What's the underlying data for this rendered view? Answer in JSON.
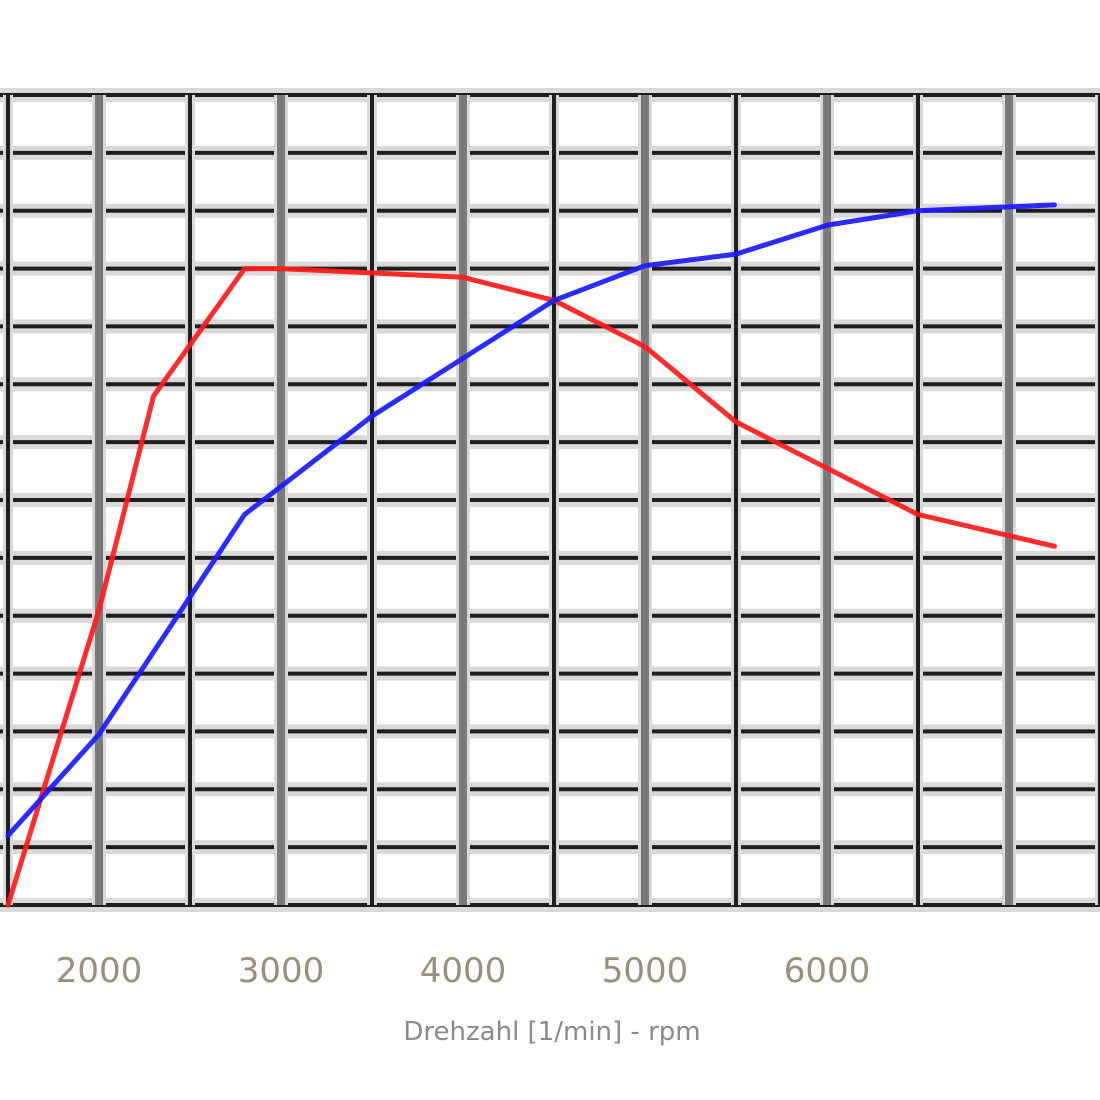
{
  "chart_data": {
    "type": "line",
    "title": "",
    "xlabel": "Drehzahl [1/min] - rpm",
    "ylabel": "",
    "xlim": [
      1500,
      7500
    ],
    "ylim": [
      0,
      14
    ],
    "x_ticks": [
      2000,
      3000,
      4000,
      5000,
      6000
    ],
    "x_tick_labels": [
      "2000",
      "3000",
      "4000",
      "5000",
      "6000"
    ],
    "grid": true,
    "legend": "none",
    "colors": {
      "series_1": "#ff1a1a",
      "series_2": "#1a1aff",
      "grid_dark": "#1e1e1e",
      "grid_light": "#d9d9d9"
    },
    "series": [
      {
        "values": [
          {
            "x": 1500,
            "y": 0.0
          },
          {
            "x": 2000,
            "y": 5.1
          },
          {
            "x": 2300,
            "y": 8.8
          },
          {
            "x": 2800,
            "y": 11.0
          },
          {
            "x": 3000,
            "y": 11.0
          },
          {
            "x": 4000,
            "y": 10.85
          },
          {
            "x": 4500,
            "y": 10.45
          },
          {
            "x": 5000,
            "y": 9.65
          },
          {
            "x": 5500,
            "y": 8.35
          },
          {
            "x": 6000,
            "y": 7.55
          },
          {
            "x": 6500,
            "y": 6.75
          },
          {
            "x": 7250,
            "y": 6.2
          }
        ]
      },
      {
        "values": [
          {
            "x": 1500,
            "y": 1.2
          },
          {
            "x": 2000,
            "y": 2.95
          },
          {
            "x": 2800,
            "y": 6.75
          },
          {
            "x": 3500,
            "y": 8.45
          },
          {
            "x": 4000,
            "y": 9.45
          },
          {
            "x": 4500,
            "y": 10.45
          },
          {
            "x": 5000,
            "y": 11.05
          },
          {
            "x": 5500,
            "y": 11.25
          },
          {
            "x": 6000,
            "y": 11.75
          },
          {
            "x": 6500,
            "y": 12.0
          },
          {
            "x": 7250,
            "y": 12.1
          }
        ]
      }
    ]
  }
}
